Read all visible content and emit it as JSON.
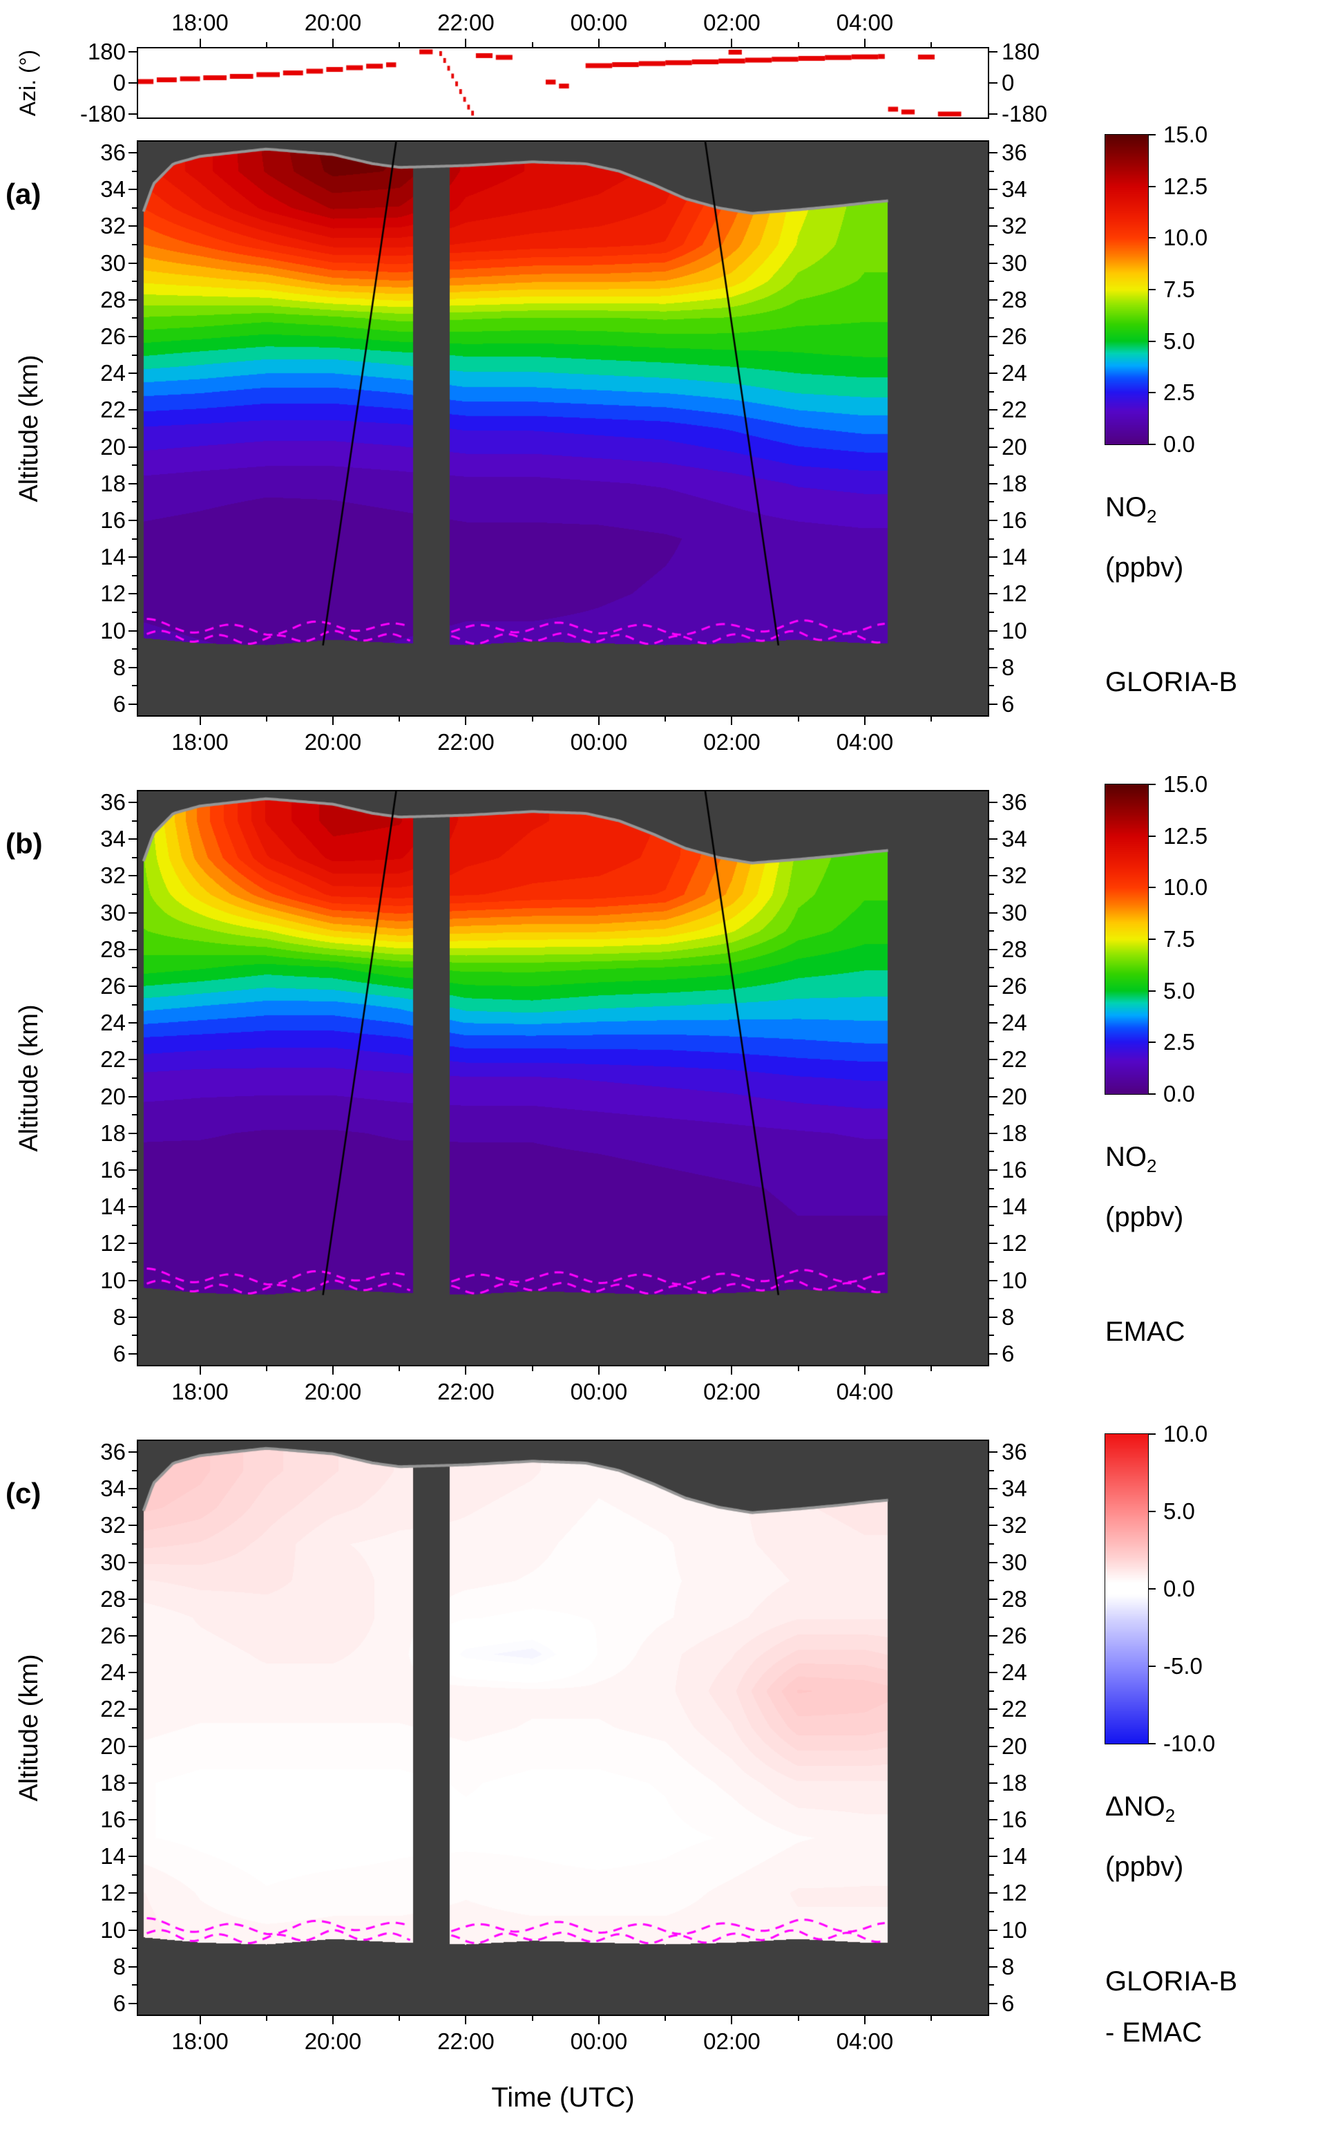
{
  "figure": {
    "xlabel": "Time (UTC)",
    "nodata_color": "#3f3f3f",
    "time_axis": {
      "tick_labels": [
        "18:00",
        "20:00",
        "22:00",
        "00:00",
        "02:00",
        "04:00"
      ],
      "tick_values": [
        18,
        20,
        22,
        24,
        26,
        28
      ],
      "minor_values": [
        17,
        19,
        21,
        23,
        25,
        27,
        29
      ],
      "range": [
        17.07,
        29.85
      ]
    },
    "altitude_axis": {
      "label": "Altitude (km)",
      "tick_labels": [
        "6",
        "8",
        "10",
        "12",
        "14",
        "16",
        "18",
        "20",
        "22",
        "24",
        "26",
        "28",
        "30",
        "32",
        "34",
        "36"
      ],
      "tick_values": [
        6,
        8,
        10,
        12,
        14,
        16,
        18,
        20,
        22,
        24,
        26,
        28,
        30,
        32,
        34,
        36
      ],
      "minor_values": [
        7,
        9,
        11,
        13,
        15,
        17,
        19,
        21,
        23,
        25,
        27,
        29,
        31,
        33,
        35
      ],
      "range": [
        5.4,
        36.6
      ]
    },
    "azimuth_axis": {
      "label": "Azi. (°)",
      "tick_labels": [
        "180",
        "0",
        "-180"
      ],
      "tick_values": [
        180,
        0,
        -180
      ],
      "range": [
        -200,
        200
      ]
    }
  },
  "panels": [
    {
      "id": "a",
      "letter": "(a)",
      "species_pre": "NO",
      "species_sub": "2",
      "unit": "(ppbv)",
      "source_lines": [
        "GLORIA-B"
      ],
      "colorbar": {
        "tick_labels": [
          "15.0",
          "12.5",
          "10.0",
          "7.5",
          "5.0",
          "2.5",
          "0.0"
        ],
        "tick_values": [
          15,
          12.5,
          10,
          7.5,
          5,
          2.5,
          0
        ],
        "range": [
          0,
          15
        ],
        "colormap": "no2"
      }
    },
    {
      "id": "b",
      "letter": "(b)",
      "species_pre": "NO",
      "species_sub": "2",
      "unit": "(ppbv)",
      "source_lines": [
        "EMAC"
      ],
      "colorbar": {
        "tick_labels": [
          "15.0",
          "12.5",
          "10.0",
          "7.5",
          "5.0",
          "2.5",
          "0.0"
        ],
        "tick_values": [
          15,
          12.5,
          10,
          7.5,
          5,
          2.5,
          0
        ],
        "range": [
          0,
          15
        ],
        "colormap": "no2"
      }
    },
    {
      "id": "c",
      "letter": "(c)",
      "species_pre": "ΔNO",
      "species_sub": "2",
      "unit": "(ppbv)",
      "source_lines": [
        "GLORIA-B",
        "- EMAC"
      ],
      "colorbar": {
        "tick_labels": [
          "10.0",
          "5.0",
          "0.0",
          "-5.0",
          "-10.0"
        ],
        "tick_values": [
          10,
          5,
          0,
          -5,
          -10
        ],
        "range": [
          -10,
          10
        ],
        "colormap": "diff"
      }
    }
  ],
  "colormaps": {
    "no2": [
      [
        0,
        "#500080"
      ],
      [
        1.6,
        "#5406c8"
      ],
      [
        2.5,
        "#2414f0"
      ],
      [
        3.2,
        "#0a50ff"
      ],
      [
        3.8,
        "#00a8ff"
      ],
      [
        4.4,
        "#00d2b4"
      ],
      [
        5.0,
        "#00c81e"
      ],
      [
        5.8,
        "#32d200"
      ],
      [
        6.8,
        "#96e600"
      ],
      [
        7.5,
        "#f0f000"
      ],
      [
        8.3,
        "#ffc800"
      ],
      [
        9.2,
        "#ff7800"
      ],
      [
        10.0,
        "#ff3c00"
      ],
      [
        11.0,
        "#f01e00"
      ],
      [
        12.5,
        "#d20000"
      ],
      [
        13.5,
        "#a00000"
      ],
      [
        15,
        "#5a0000"
      ]
    ],
    "diff": [
      [
        -10,
        "#1414f0"
      ],
      [
        -5,
        "#8c8cff"
      ],
      [
        -2,
        "#d2d2ff"
      ],
      [
        -0.4,
        "#ffffff"
      ],
      [
        0.4,
        "#ffffff"
      ],
      [
        2,
        "#ffd2d2"
      ],
      [
        5,
        "#ff8c8c"
      ],
      [
        10,
        "#f01414"
      ]
    ]
  },
  "mask": {
    "t_start": 17.15,
    "t_end": 28.35,
    "gap": [
      21.2,
      21.75
    ],
    "boundary_line_color": "#969696",
    "dashed_line_color": "#ff00ff",
    "top_boundary": {
      "t": [
        17.1,
        17.3,
        17.6,
        18.0,
        19.0,
        20.0,
        20.6,
        21.0,
        22.0,
        23.0,
        23.8,
        24.3,
        24.8,
        25.3,
        25.8,
        26.3,
        27.0,
        27.6,
        28.1,
        28.4
      ],
      "alt": [
        32.3,
        34.3,
        35.4,
        35.8,
        36.2,
        35.9,
        35.4,
        35.2,
        35.3,
        35.5,
        35.4,
        35.0,
        34.3,
        33.5,
        33.0,
        32.7,
        32.9,
        33.1,
        33.3,
        33.4
      ]
    },
    "bottom_boundary": {
      "t": [
        17.1,
        18,
        19,
        20,
        21,
        22,
        23,
        24,
        25,
        26,
        27,
        28,
        28.4
      ],
      "alt": [
        9.6,
        9.3,
        9.2,
        9.5,
        9.3,
        9.2,
        9.4,
        9.3,
        9.2,
        9.3,
        9.5,
        9.3,
        9.3
      ]
    }
  },
  "annotation_lines": [
    {
      "x": [
        19.85,
        20.95
      ],
      "y": [
        9.2,
        36.6
      ]
    },
    {
      "x": [
        25.6,
        26.7
      ],
      "y": [
        36.6,
        9.2
      ]
    }
  ],
  "chart_data": [
    {
      "type": "scatter",
      "name": "viewing-azimuth",
      "x_label": "Time (UTC)",
      "y_label": "Azi. (°)",
      "y_range": [
        -180,
        180
      ],
      "color": "#e60000",
      "segments": [
        [
          17.05,
          17.3,
          8
        ],
        [
          17.35,
          17.65,
          18
        ],
        [
          17.7,
          18.0,
          24
        ],
        [
          18.05,
          18.4,
          30
        ],
        [
          18.45,
          18.8,
          38
        ],
        [
          18.85,
          19.2,
          48
        ],
        [
          19.25,
          19.55,
          58
        ],
        [
          19.6,
          19.85,
          68
        ],
        [
          19.9,
          20.15,
          78
        ],
        [
          20.2,
          20.45,
          88
        ],
        [
          20.5,
          20.75,
          97
        ],
        [
          20.8,
          20.95,
          105
        ],
        [
          21.3,
          21.5,
          180
        ],
        [
          21.6,
          21.64,
          170
        ],
        [
          21.66,
          21.7,
          130
        ],
        [
          21.72,
          21.76,
          85
        ],
        [
          21.78,
          21.82,
          40
        ],
        [
          21.84,
          21.88,
          -5
        ],
        [
          21.9,
          21.94,
          -50
        ],
        [
          21.96,
          22.0,
          -95
        ],
        [
          22.02,
          22.06,
          -140
        ],
        [
          22.08,
          22.12,
          -175
        ],
        [
          22.15,
          22.4,
          158
        ],
        [
          22.45,
          22.7,
          148
        ],
        [
          23.2,
          23.35,
          5
        ],
        [
          23.4,
          23.55,
          -18
        ],
        [
          23.8,
          24.2,
          100
        ],
        [
          24.2,
          24.6,
          106
        ],
        [
          24.6,
          25.0,
          112
        ],
        [
          25.0,
          25.4,
          117
        ],
        [
          25.4,
          25.8,
          122
        ],
        [
          25.8,
          26.2,
          127
        ],
        [
          25.95,
          26.15,
          178
        ],
        [
          26.2,
          26.6,
          132
        ],
        [
          26.6,
          27.0,
          137
        ],
        [
          27.0,
          27.4,
          142
        ],
        [
          27.4,
          27.8,
          147
        ],
        [
          27.8,
          28.2,
          151
        ],
        [
          28.2,
          28.3,
          153
        ],
        [
          28.35,
          28.5,
          -152
        ],
        [
          28.55,
          28.75,
          -168
        ],
        [
          28.8,
          29.05,
          150
        ],
        [
          29.1,
          29.45,
          -180
        ]
      ]
    },
    {
      "type": "heatmap",
      "name": "NO2 GLORIA-B",
      "units": "ppbv",
      "x_label": "Time (UTC)",
      "y_label": "Altitude (km)",
      "value_range": [
        0,
        15
      ],
      "quantize": 0.5,
      "t": [
        17.1,
        18,
        19,
        20,
        21,
        22,
        23,
        24,
        25,
        26,
        27,
        28,
        28.4
      ],
      "alt": [
        9,
        12,
        15,
        18,
        21,
        23,
        25,
        27,
        29,
        31,
        33,
        35,
        37
      ],
      "values": [
        [
          0.9,
          0.8,
          0.7,
          0.7,
          0.8,
          0.9,
          0.9,
          0.9,
          1.0,
          1.0,
          1.1,
          1.1,
          1.1
        ],
        [
          0.6,
          0.5,
          0.4,
          0.4,
          0.5,
          0.6,
          0.6,
          0.7,
          0.8,
          0.9,
          1.0,
          1.0,
          1.0
        ],
        [
          0.6,
          0.5,
          0.3,
          0.4,
          0.5,
          0.6,
          0.6,
          0.6,
          0.7,
          0.9,
          1.0,
          1.1,
          1.1
        ],
        [
          1.1,
          1.0,
          0.9,
          0.9,
          1.0,
          1.1,
          1.1,
          1.2,
          1.3,
          1.5,
          1.8,
          1.9,
          1.9
        ],
        [
          2.2,
          2.1,
          2.0,
          2.0,
          2.1,
          2.3,
          2.3,
          2.4,
          2.5,
          2.8,
          3.2,
          3.4,
          3.4
        ],
        [
          3.4,
          3.3,
          3.1,
          3.1,
          3.3,
          3.6,
          3.6,
          3.7,
          3.8,
          4.0,
          4.3,
          4.4,
          4.4
        ],
        [
          4.8,
          4.6,
          4.4,
          4.4,
          4.6,
          4.8,
          4.8,
          4.9,
          5.0,
          5.1,
          5.2,
          5.3,
          5.3
        ],
        [
          6.2,
          6.1,
          5.9,
          6.1,
          6.4,
          6.3,
          6.2,
          6.2,
          6.3,
          6.2,
          5.9,
          5.8,
          5.8
        ],
        [
          7.8,
          8.0,
          8.3,
          9.0,
          9.2,
          9.0,
          8.8,
          8.8,
          8.7,
          8.0,
          6.6,
          6.2,
          6.2
        ],
        [
          9.2,
          9.8,
          10.6,
          11.4,
          11.4,
          11.2,
          11.0,
          10.9,
          10.7,
          9.0,
          7.2,
          6.4,
          6.4
        ],
        [
          10.2,
          11.2,
          12.4,
          13.3,
          13.2,
          12.1,
          11.8,
          11.6,
          11.2,
          9.5,
          7.4,
          6.5,
          6.5
        ],
        [
          11.0,
          12.0,
          13.3,
          14.4,
          14.2,
          12.6,
          12.2,
          12.0,
          11.6,
          10.2,
          7.6,
          6.6,
          6.6
        ],
        [
          11.0,
          12.0,
          13.4,
          14.6,
          14.3,
          12.6,
          12.2,
          12.0,
          11.6,
          10.2,
          7.6,
          6.6,
          6.6
        ]
      ]
    },
    {
      "type": "heatmap",
      "name": "NO2 EMAC",
      "units": "ppbv",
      "x_label": "Time (UTC)",
      "y_label": "Altitude (km)",
      "value_range": [
        0,
        15
      ],
      "quantize": 0.5,
      "t": [
        17.1,
        18,
        19,
        20,
        21,
        22,
        23,
        24,
        25,
        26,
        27,
        28,
        28.4
      ],
      "alt": [
        9,
        12,
        15,
        18,
        21,
        23,
        25,
        27,
        29,
        31,
        33,
        35,
        37
      ],
      "values": [
        [
          0.5,
          0.5,
          0.5,
          0.5,
          0.5,
          0.5,
          0.5,
          0.5,
          0.6,
          0.6,
          0.7,
          0.7,
          0.7
        ],
        [
          0.4,
          0.4,
          0.3,
          0.3,
          0.4,
          0.4,
          0.4,
          0.5,
          0.5,
          0.6,
          0.7,
          0.7,
          0.7
        ],
        [
          0.5,
          0.4,
          0.4,
          0.4,
          0.4,
          0.5,
          0.5,
          0.5,
          0.6,
          0.7,
          0.8,
          0.8,
          0.8
        ],
        [
          0.8,
          0.8,
          0.7,
          0.7,
          0.8,
          0.8,
          0.8,
          0.9,
          1.0,
          1.1,
          1.2,
          1.3,
          1.3
        ],
        [
          1.6,
          1.5,
          1.5,
          1.5,
          1.6,
          1.7,
          1.7,
          1.8,
          1.9,
          2.0,
          2.2,
          2.3,
          2.3
        ],
        [
          2.6,
          2.5,
          2.4,
          2.4,
          2.6,
          3.0,
          3.0,
          3.0,
          3.0,
          3.1,
          3.2,
          3.3,
          3.3
        ],
        [
          4.0,
          3.8,
          3.6,
          3.6,
          3.9,
          4.5,
          4.6,
          4.4,
          4.3,
          4.2,
          4.1,
          4.1,
          4.1
        ],
        [
          5.5,
          5.3,
          5.0,
          5.2,
          5.7,
          5.9,
          5.9,
          5.8,
          5.7,
          5.5,
          5.0,
          4.8,
          4.8
        ],
        [
          6.2,
          6.6,
          7.2,
          8.2,
          8.6,
          8.4,
          8.3,
          8.3,
          8.1,
          7.3,
          6.0,
          5.5,
          5.5
        ],
        [
          6.5,
          8.0,
          9.6,
          10.9,
          11.0,
          10.8,
          10.6,
          10.5,
          10.2,
          8.6,
          6.4,
          5.8,
          5.8
        ],
        [
          6.6,
          9.0,
          11.2,
          12.4,
          12.3,
          11.4,
          11.1,
          11.0,
          10.6,
          9.0,
          6.6,
          5.9,
          5.9
        ],
        [
          6.7,
          9.4,
          11.8,
          13.0,
          12.8,
          11.6,
          11.3,
          11.1,
          10.7,
          9.1,
          6.7,
          6.0,
          6.0
        ],
        [
          6.7,
          9.4,
          11.8,
          13.0,
          12.8,
          11.6,
          11.3,
          11.1,
          10.7,
          9.1,
          6.7,
          6.0,
          6.0
        ]
      ]
    },
    {
      "type": "heatmap",
      "name": "ΔNO2 (GLORIA-B - EMAC)",
      "units": "ppbv",
      "x_label": "Time (UTC)",
      "y_label": "Altitude (km)",
      "value_range": [
        -10,
        10
      ],
      "quantize": 0.25,
      "t": [
        17.1,
        18,
        19,
        20,
        21,
        22,
        23,
        24,
        25,
        26,
        27,
        28,
        28.4
      ],
      "alt": [
        9,
        12,
        15,
        18,
        21,
        23,
        25,
        27,
        29,
        31,
        33,
        35,
        37
      ],
      "values": [
        [
          1.0,
          0.8,
          0.8,
          0.8,
          0.8,
          0.8,
          0.8,
          0.8,
          0.8,
          0.8,
          0.8,
          0.8,
          0.8
        ],
        [
          0.9,
          0.6,
          0.4,
          0.5,
          0.5,
          0.6,
          0.5,
          0.5,
          0.5,
          0.7,
          0.9,
          0.9,
          0.9
        ],
        [
          0.4,
          0.3,
          0.2,
          0.2,
          0.3,
          0.3,
          0.3,
          0.2,
          0.3,
          0.4,
          0.6,
          0.7,
          0.7
        ],
        [
          0.4,
          0.3,
          0.3,
          0.3,
          0.3,
          0.4,
          0.3,
          0.3,
          0.4,
          0.7,
          1.1,
          1.1,
          1.1
        ],
        [
          0.7,
          0.6,
          0.6,
          0.6,
          0.6,
          0.7,
          0.6,
          0.6,
          0.7,
          1.1,
          2.0,
          2.0,
          1.9
        ],
        [
          0.8,
          0.8,
          0.8,
          0.8,
          0.8,
          0.8,
          0.7,
          0.7,
          0.8,
          1.3,
          2.4,
          2.3,
          2.2
        ],
        [
          0.8,
          0.8,
          0.9,
          0.9,
          0.8,
          -0.5,
          -0.8,
          0.4,
          0.8,
          1.1,
          1.7,
          1.7,
          1.6
        ],
        [
          0.7,
          0.9,
          1.0,
          1.0,
          0.8,
          0.4,
          0.3,
          0.4,
          0.6,
          0.8,
          1.1,
          1.1,
          1.1
        ],
        [
          1.1,
          1.2,
          1.2,
          1.0,
          0.8,
          0.7,
          0.6,
          0.5,
          0.6,
          0.7,
          0.9,
          1.0,
          1.0
        ],
        [
          1.7,
          1.6,
          1.3,
          0.9,
          0.8,
          0.8,
          0.7,
          0.5,
          0.6,
          0.8,
          1.0,
          1.1,
          1.1
        ],
        [
          2.2,
          2.0,
          1.5,
          1.2,
          1.0,
          0.9,
          0.8,
          0.6,
          0.7,
          0.8,
          1.1,
          1.2,
          1.2
        ],
        [
          2.4,
          2.2,
          1.7,
          1.4,
          1.1,
          1.0,
          0.9,
          0.7,
          0.8,
          0.9,
          1.1,
          1.2,
          1.2
        ],
        [
          2.4,
          2.2,
          1.7,
          1.4,
          1.1,
          1.0,
          0.9,
          0.7,
          0.8,
          0.9,
          1.1,
          1.2,
          1.2
        ]
      ]
    }
  ]
}
